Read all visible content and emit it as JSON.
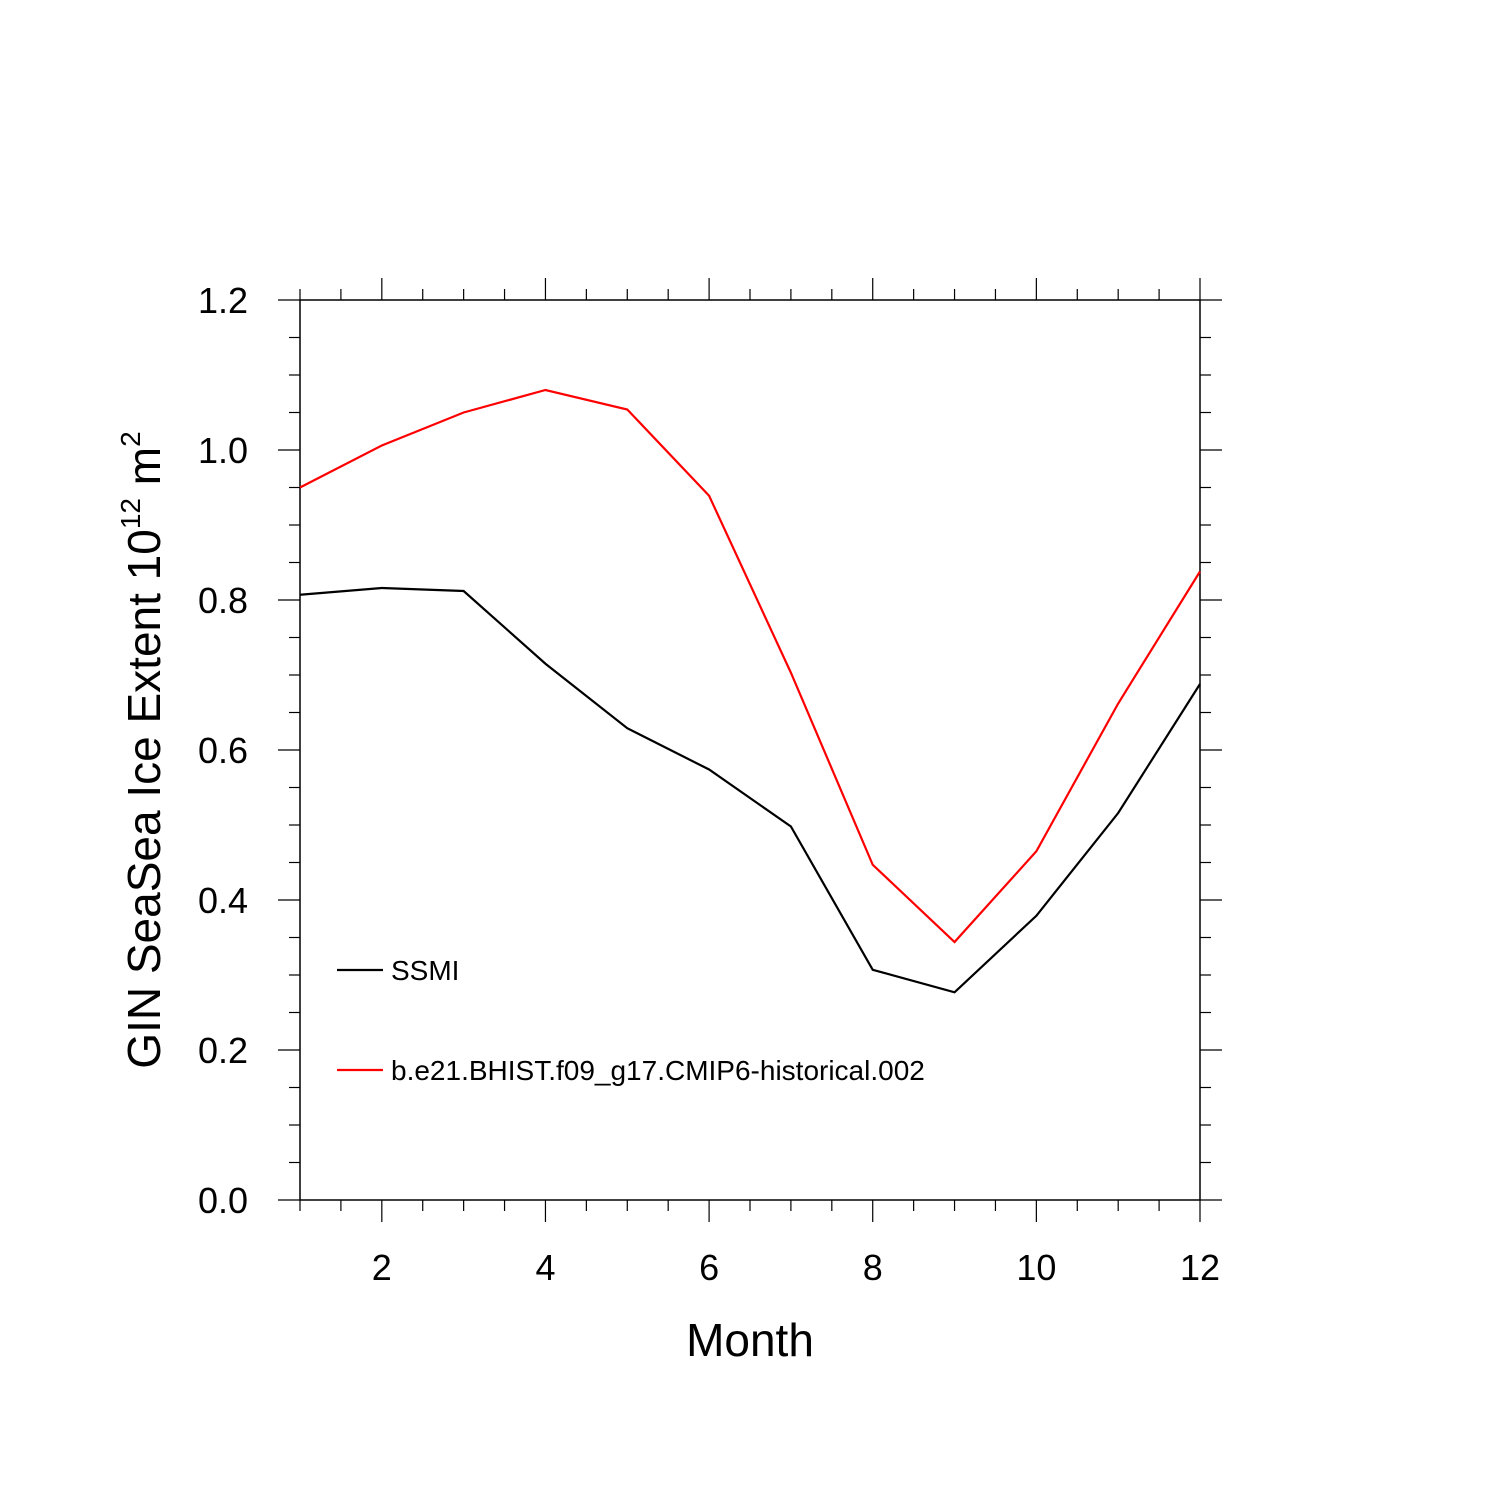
{
  "chart_data": {
    "type": "line",
    "title": "",
    "xlabel": "Month",
    "ylabel": {
      "prefix": "GIN SeaSea Ice Extent 10",
      "exponent1": "12",
      "unit": " m",
      "exponent2": "2"
    },
    "xlim": [
      1,
      12
    ],
    "ylim": [
      0.0,
      1.2
    ],
    "x_ticks": [
      2,
      4,
      6,
      8,
      10,
      12
    ],
    "x_tick_labels": [
      "2",
      "4",
      "6",
      "8",
      "10",
      "12"
    ],
    "y_ticks": [
      0.0,
      0.2,
      0.4,
      0.6,
      0.8,
      1.0,
      1.2
    ],
    "y_tick_labels": [
      "0.0",
      "0.2",
      "0.4",
      "0.6",
      "0.8",
      "1.0",
      "1.2"
    ],
    "grid": false,
    "legend_position": "inside-bottom-left",
    "x": [
      1,
      2,
      3,
      4,
      5,
      6,
      7,
      8,
      9,
      10,
      11,
      12
    ],
    "series": [
      {
        "name": "SSMI",
        "color": "#000000",
        "values": [
          0.807,
          0.816,
          0.812,
          0.715,
          0.629,
          0.574,
          0.498,
          0.307,
          0.277,
          0.379,
          0.516,
          0.688
        ]
      },
      {
        "name": "b.e21.BHIST.f09_g17.CMIP6-historical.002",
        "color": "#ff0000",
        "values": [
          0.95,
          1.006,
          1.05,
          1.08,
          1.054,
          0.939,
          0.703,
          0.447,
          0.344,
          0.465,
          0.662,
          0.838
        ]
      }
    ]
  }
}
